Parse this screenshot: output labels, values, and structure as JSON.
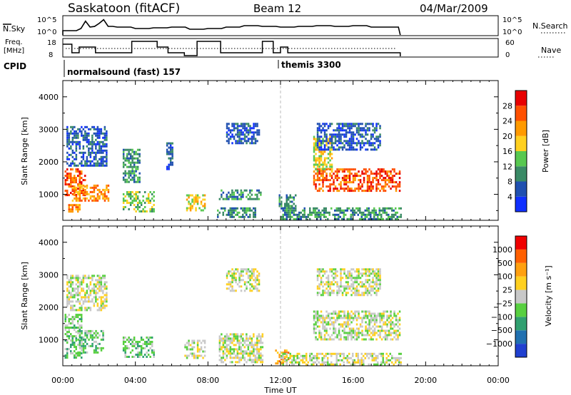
{
  "header": {
    "station": "Saskatoon (fitACF)",
    "beam": "Beam 12",
    "date": "04/Mar/2009"
  },
  "top_strips": {
    "nsky_label": "N.Sky",
    "nsky_ticks": [
      "10^5",
      "10^0"
    ],
    "nsearch_label": "N.Search",
    "nsearch_ticks": [
      "10^5",
      "10^0"
    ],
    "freq_label_1": "Freq.",
    "freq_label_2": "[MHz]",
    "freq_ticks": [
      "18",
      "8"
    ],
    "nave_label": "Nave",
    "nave_ticks": [
      "60",
      "0"
    ],
    "cpid_label": "CPID",
    "cpid_segments": [
      {
        "label": "normalsound (fast) 157",
        "start_hour": 0
      },
      {
        "label": "themis 3300",
        "start_hour": 12
      }
    ],
    "frequency_steps": [
      {
        "from": 0.0,
        "to": 0.5,
        "mhz": 16
      },
      {
        "from": 0.5,
        "to": 0.9,
        "mhz": 10
      },
      {
        "from": 0.9,
        "to": 1.8,
        "mhz": 14
      },
      {
        "from": 1.8,
        "to": 3.8,
        "mhz": 10
      },
      {
        "from": 3.8,
        "to": 5.2,
        "mhz": 18
      },
      {
        "from": 5.2,
        "to": 5.8,
        "mhz": 14
      },
      {
        "from": 5.8,
        "to": 6.7,
        "mhz": 10
      },
      {
        "from": 6.7,
        "to": 7.4,
        "mhz": 8
      },
      {
        "from": 7.4,
        "to": 8.7,
        "mhz": 18
      },
      {
        "from": 8.7,
        "to": 11.0,
        "mhz": 10
      },
      {
        "from": 11.0,
        "to": 11.6,
        "mhz": 18
      },
      {
        "from": 11.6,
        "to": 12.0,
        "mhz": 10
      },
      {
        "from": 12.0,
        "to": 12.4,
        "mhz": 14
      },
      {
        "from": 12.4,
        "to": 18.6,
        "mhz": 10
      }
    ]
  },
  "chart_data": [
    {
      "type": "heatmap",
      "panel": "power",
      "xlabel": "Time UT",
      "ylabel": "Slant Range [km]",
      "xlim": [
        0,
        24
      ],
      "ylim": [
        200,
        4500
      ],
      "x_ticks": [
        "00:00",
        "04:00",
        "08:00",
        "12:00",
        "16:00",
        "20:00",
        "00:00"
      ],
      "y_ticks": [
        1000,
        2000,
        3000,
        4000
      ],
      "colorbar_label": "Power [dB]",
      "colorbar_ticks": [
        "4",
        "8",
        "12",
        "16",
        "20",
        "24",
        "28"
      ],
      "colorbar_colors": [
        "#1030ff",
        "#2050b0",
        "#3a8a66",
        "#58c850",
        "#ffd020",
        "#ff9a00",
        "#ff5000",
        "#e80000"
      ],
      "regions": [
        {
          "t": [
            0.1,
            1.2
          ],
          "r": [
            1000,
            1800
          ],
          "level": 6
        },
        {
          "t": [
            0.1,
            0.9
          ],
          "r": [
            450,
            700
          ],
          "level": 5
        },
        {
          "t": [
            0.5,
            2.5
          ],
          "r": [
            800,
            1300
          ],
          "level": 5
        },
        {
          "t": [
            0.2,
            2.4
          ],
          "r": [
            1900,
            3100
          ],
          "level": 1
        },
        {
          "t": [
            3.3,
            5.0
          ],
          "r": [
            500,
            1100
          ],
          "level": 3
        },
        {
          "t": [
            3.3,
            4.2
          ],
          "r": [
            1400,
            2400
          ],
          "level": 2
        },
        {
          "t": [
            5.7,
            6.0
          ],
          "r": [
            1800,
            2600
          ],
          "level": 1
        },
        {
          "t": [
            6.8,
            7.8
          ],
          "r": [
            500,
            1000
          ],
          "level": 4
        },
        {
          "t": [
            8.6,
            11.0
          ],
          "r": [
            850,
            1150
          ],
          "level": 2
        },
        {
          "t": [
            9.0,
            10.8
          ],
          "r": [
            2600,
            3200
          ],
          "level": 1
        },
        {
          "t": [
            8.5,
            10.6
          ],
          "r": [
            300,
            600
          ],
          "level": 2
        },
        {
          "t": [
            11.9,
            12.8
          ],
          "r": [
            600,
            1000
          ],
          "level": 2
        },
        {
          "t": [
            13.8,
            18.6
          ],
          "r": [
            1100,
            1800
          ],
          "level": 6
        },
        {
          "t": [
            13.8,
            14.8
          ],
          "r": [
            1700,
            2800
          ],
          "level": 4
        },
        {
          "t": [
            14.0,
            17.5
          ],
          "r": [
            2400,
            3200
          ],
          "level": 1
        },
        {
          "t": [
            12.0,
            18.6
          ],
          "r": [
            250,
            600
          ],
          "level": 2
        }
      ]
    },
    {
      "type": "heatmap",
      "panel": "velocity",
      "xlabel": "Time UT",
      "ylabel": "Slant Range [km]",
      "xlim": [
        0,
        24
      ],
      "ylim": [
        200,
        4500
      ],
      "x_ticks": [
        "00:00",
        "04:00",
        "08:00",
        "12:00",
        "16:00",
        "20:00",
        "00:00"
      ],
      "y_ticks": [
        1000,
        2000,
        3000,
        4000
      ],
      "colorbar_label": "Velocity [m s⁻¹]",
      "colorbar_ticks": [
        "1000",
        "500",
        "100",
        "25",
        "−25",
        "−100",
        "−500",
        "−1000"
      ],
      "colorbar_colors": [
        "#2040d0",
        "#2070b0",
        "#30a070",
        "#58d040",
        "#c8c8c8",
        "#ffd020",
        "#ffa010",
        "#ff6000",
        "#f00000"
      ],
      "regions": [
        {
          "t": [
            0.1,
            1.0
          ],
          "r": [
            450,
            1800
          ],
          "level": 3
        },
        {
          "t": [
            0.8,
            2.2
          ],
          "r": [
            600,
            1300
          ],
          "level": 3
        },
        {
          "t": [
            0.2,
            2.4
          ],
          "r": [
            1900,
            3000
          ],
          "level": 4
        },
        {
          "t": [
            3.3,
            5.0
          ],
          "r": [
            450,
            1100
          ],
          "level": 3
        },
        {
          "t": [
            6.7,
            7.8
          ],
          "r": [
            450,
            1000
          ],
          "level": 4
        },
        {
          "t": [
            8.6,
            11.0
          ],
          "r": [
            300,
            1200
          ],
          "level": 4
        },
        {
          "t": [
            9.0,
            10.8
          ],
          "r": [
            2500,
            3200
          ],
          "level": 4
        },
        {
          "t": [
            11.7,
            12.4
          ],
          "r": [
            300,
            700
          ],
          "level": 6
        },
        {
          "t": [
            13.8,
            18.6
          ],
          "r": [
            1000,
            1900
          ],
          "level": 4
        },
        {
          "t": [
            14.0,
            17.5
          ],
          "r": [
            2400,
            3200
          ],
          "level": 4
        },
        {
          "t": [
            12.0,
            18.6
          ],
          "r": [
            250,
            600
          ],
          "level": 4
        }
      ]
    }
  ]
}
